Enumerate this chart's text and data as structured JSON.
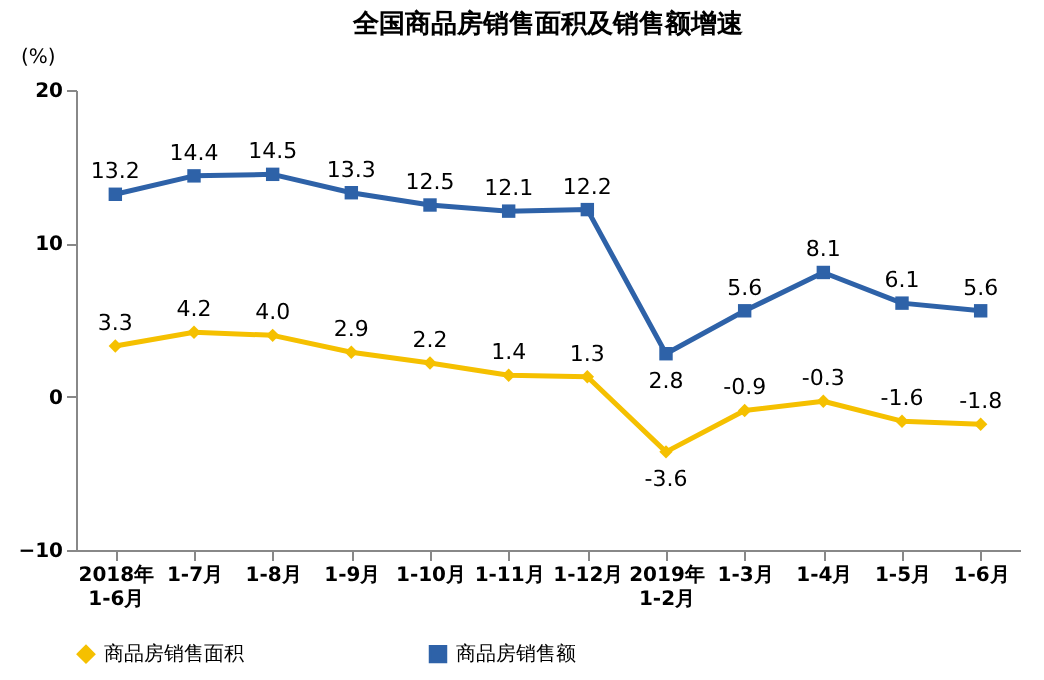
{
  "chart_data": {
    "type": "line",
    "title": "全国商品房销售面积及销售额增速",
    "ylabel": "(%)",
    "categories": [
      "2018年\n1-6月",
      "1-7月",
      "1-8月",
      "1-9月",
      "1-10月",
      "1-11月",
      "1-12月",
      "2019年\n1-2月",
      "1-3月",
      "1-4月",
      "1-5月",
      "1-6月"
    ],
    "series": [
      {
        "name": "商品房销售面积",
        "color": "#f5c000",
        "marker": "diamond",
        "values": [
          3.3,
          4.2,
          4.0,
          2.9,
          2.2,
          1.4,
          1.3,
          -3.6,
          -0.9,
          -0.3,
          -1.6,
          -1.8
        ],
        "value_labels": [
          "3.3",
          "4.2",
          "4.0",
          "2.9",
          "2.2",
          "1.4",
          "1.3",
          "-3.6",
          "-0.9",
          "-0.3",
          "-1.6",
          "-1.8"
        ]
      },
      {
        "name": "商品房销售额",
        "color": "#2e62a8",
        "marker": "square",
        "values": [
          13.2,
          14.4,
          14.5,
          13.3,
          12.5,
          12.1,
          12.2,
          2.8,
          5.6,
          8.1,
          6.1,
          5.6
        ]
      }
    ],
    "ylim": [
      -10,
      20
    ],
    "yticks": [
      -10,
      0,
      10,
      20
    ],
    "grid": false,
    "legend": "bottom",
    "data_labels": true,
    "line_style": "solid"
  }
}
